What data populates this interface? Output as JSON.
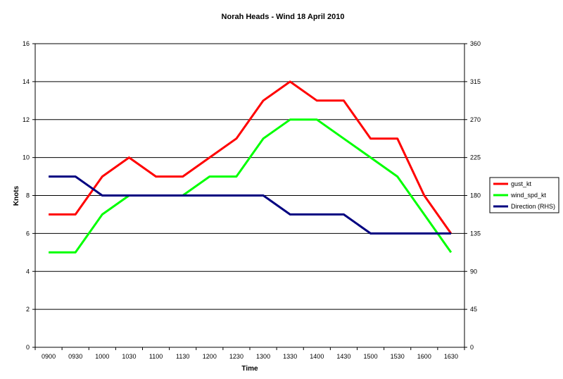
{
  "chart_data": {
    "type": "line",
    "title": "Norah Heads - Wind 18 April 2010",
    "xlabel": "Time",
    "ylabel": "Knots",
    "categories": [
      "0900",
      "0930",
      "1000",
      "1030",
      "1100",
      "1130",
      "1200",
      "1230",
      "1300",
      "1330",
      "1400",
      "1430",
      "1500",
      "1530",
      "1600",
      "1630"
    ],
    "ylim": [
      0,
      16
    ],
    "yticks": [
      "0",
      "2",
      "4",
      "6",
      "8",
      "10",
      "12",
      "14",
      "16"
    ],
    "y2lim": [
      0,
      360
    ],
    "y2ticks": [
      "0",
      "45",
      "90",
      "135",
      "180",
      "225",
      "270",
      "315",
      "360"
    ],
    "grid": true,
    "legend": "right",
    "series": [
      {
        "name": "gust_kt",
        "axis": "left",
        "color": "#ff0000",
        "values": [
          7,
          7,
          9,
          10,
          9,
          9,
          10,
          11,
          13,
          14,
          13,
          13,
          11,
          11,
          8,
          6
        ]
      },
      {
        "name": "wind_spd_kt",
        "axis": "left",
        "color": "#00ff00",
        "values": [
          5,
          5,
          7,
          8,
          8,
          8,
          9,
          9,
          11,
          12,
          12,
          11,
          10,
          9,
          7,
          5
        ]
      },
      {
        "name": "Direction (RHS)",
        "axis": "right",
        "color": "#000080",
        "values": [
          202.5,
          202.5,
          180,
          180,
          180,
          180,
          180,
          180,
          180,
          157.5,
          157.5,
          157.5,
          135,
          135,
          135,
          135
        ]
      }
    ]
  }
}
